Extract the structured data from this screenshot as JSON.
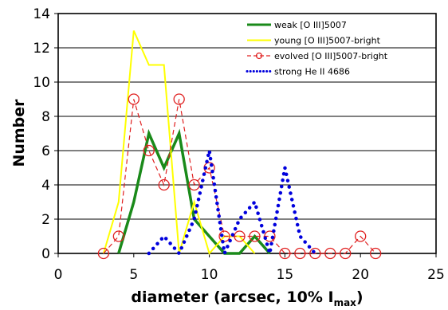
{
  "chart_data": {
    "type": "line",
    "ylabel": "Number",
    "xlabel_main": "diameter (arcsec, 10% I",
    "xlabel_sub": "max",
    "xlabel_close": ")",
    "xlim": [
      0,
      25
    ],
    "ylim": [
      0,
      14
    ],
    "x_ticks": [
      0,
      5,
      10,
      15,
      20,
      25
    ],
    "y_ticks": [
      0,
      2,
      4,
      6,
      8,
      10,
      12,
      14
    ],
    "x_tick_labels": [
      "0",
      "5",
      "10",
      "15",
      "20",
      "25"
    ],
    "y_tick_labels": [
      "0",
      "2",
      "4",
      "6",
      "8",
      "10",
      "12",
      "14"
    ],
    "grid": "horizontal",
    "legend_position": "top-right",
    "series": [
      {
        "name": "weak [O III]5007",
        "color": "#1a8a1a",
        "style": "solid-thick",
        "x": [
          4,
          5,
          6,
          7,
          8,
          9,
          10,
          11,
          12,
          13,
          14
        ],
        "y": [
          0,
          3,
          7,
          5,
          7,
          2,
          1,
          0,
          0,
          1,
          0
        ]
      },
      {
        "name": "young [O III]5007-bright",
        "color": "#ffff00",
        "style": "solid",
        "x": [
          3,
          4,
          5,
          6,
          7,
          8,
          9,
          10,
          11,
          12,
          13
        ],
        "y": [
          0,
          3,
          13,
          11,
          11,
          0,
          3,
          0,
          1,
          1,
          0
        ]
      },
      {
        "name": "evolved [O III]5007-bright",
        "color": "#e02020",
        "style": "dashed-circles",
        "x": [
          3,
          4,
          5,
          6,
          7,
          8,
          9,
          10,
          11,
          12,
          13,
          14,
          15,
          16,
          17,
          18,
          19,
          20,
          21
        ],
        "y": [
          0,
          1,
          9,
          6,
          4,
          9,
          4,
          5,
          1,
          1,
          1,
          1,
          0,
          0,
          0,
          0,
          0,
          1,
          0
        ]
      },
      {
        "name": "strong He II 4686",
        "color": "#0000dd",
        "style": "dotted",
        "x": [
          6,
          7,
          8,
          9,
          10,
          11,
          12,
          13,
          14,
          15,
          16,
          17
        ],
        "y": [
          0,
          1,
          0,
          2,
          6,
          0,
          2,
          3,
          0,
          5,
          1,
          0
        ]
      }
    ]
  }
}
